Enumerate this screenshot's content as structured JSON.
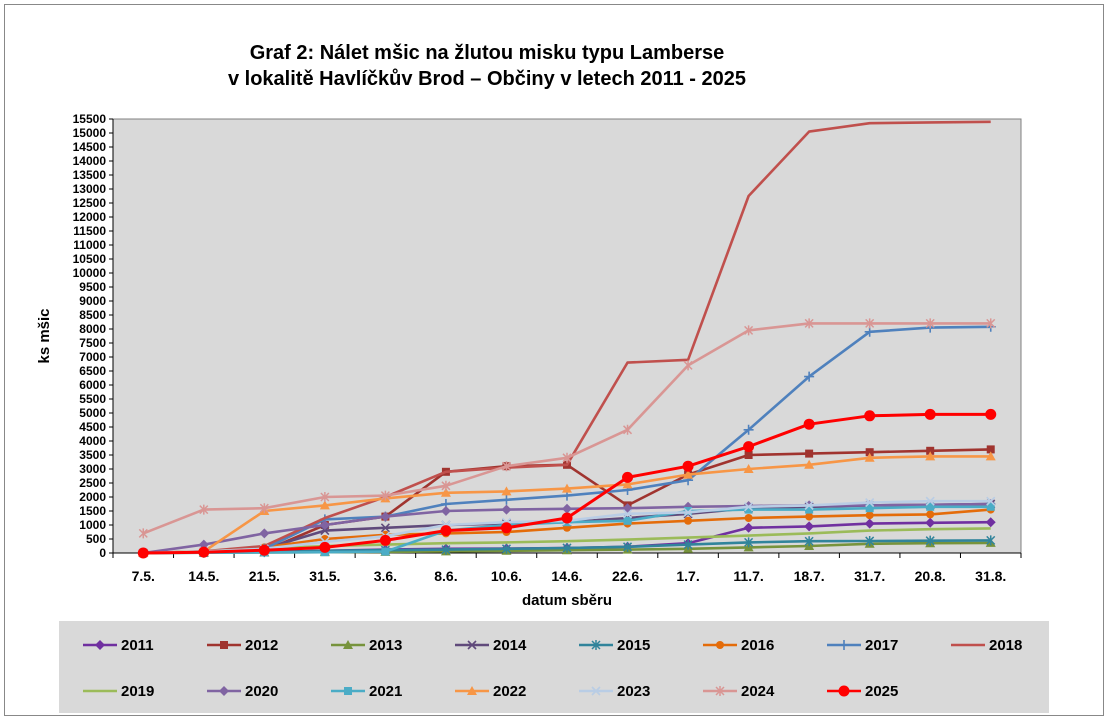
{
  "chart_data": {
    "type": "line",
    "title": "Graf 2: Nálet mšic na žlutou misku typu Lamberse",
    "subtitle": "v lokalitě Havlíčkův Brod – Občiny v letech 2011 - 2025",
    "xlabel": "datum sběru",
    "ylabel": "ks mšic",
    "ylim": [
      0,
      15500
    ],
    "ytick_step": 500,
    "grid": false,
    "legend_position": "bottom",
    "categories": [
      "7.5.",
      "14.5.",
      "21.5.",
      "31.5.",
      "3.6.",
      "8.6.",
      "10.6.",
      "14.6.",
      "22.6.",
      "1.7.",
      "11.7.",
      "18.7.",
      "31.7.",
      "20.8.",
      "31.8."
    ],
    "series": [
      {
        "name": "2011",
        "color": "#7030A0",
        "marker": "diamond",
        "values": [
          0,
          20,
          40,
          80,
          120,
          150,
          160,
          180,
          220,
          350,
          900,
          950,
          1050,
          1080,
          1100
        ]
      },
      {
        "name": "2012",
        "color": "#A0342F",
        "marker": "square",
        "values": [
          0,
          30,
          80,
          1000,
          1300,
          2900,
          3100,
          3150,
          1700,
          2800,
          3500,
          3550,
          3600,
          3650,
          3700
        ]
      },
      {
        "name": "2013",
        "color": "#77933C",
        "marker": "triangle",
        "values": [
          0,
          10,
          20,
          30,
          40,
          60,
          80,
          100,
          120,
          150,
          200,
          250,
          330,
          350,
          360
        ]
      },
      {
        "name": "2014",
        "color": "#604A7B",
        "marker": "x",
        "values": [
          0,
          50,
          150,
          800,
          900,
          1000,
          1050,
          1100,
          1250,
          1400,
          1600,
          1650,
          1700,
          1720,
          1750
        ]
      },
      {
        "name": "2015",
        "color": "#31849B",
        "marker": "star",
        "values": [
          0,
          10,
          30,
          80,
          100,
          120,
          150,
          180,
          220,
          300,
          380,
          420,
          430,
          440,
          450
        ]
      },
      {
        "name": "2016",
        "color": "#E46C0A",
        "marker": "circle",
        "values": [
          0,
          40,
          200,
          500,
          650,
          700,
          750,
          900,
          1050,
          1150,
          1250,
          1300,
          1350,
          1380,
          1550
        ]
      },
      {
        "name": "2017",
        "color": "#4F81BD",
        "marker": "plus",
        "values": [
          0,
          50,
          150,
          1200,
          1300,
          1750,
          1900,
          2050,
          2250,
          2600,
          4400,
          6300,
          7900,
          8050,
          8080
        ]
      },
      {
        "name": "2018",
        "color": "#C0504D",
        "marker": "none",
        "values": [
          0,
          60,
          250,
          1250,
          2000,
          2900,
          3050,
          3150,
          6800,
          6900,
          12750,
          15050,
          15350,
          15380,
          15400
        ]
      },
      {
        "name": "2019",
        "color": "#9BBB59",
        "marker": "none",
        "values": [
          0,
          50,
          150,
          250,
          300,
          350,
          380,
          420,
          480,
          550,
          620,
          700,
          800,
          850,
          880
        ]
      },
      {
        "name": "2020",
        "color": "#8064A2",
        "marker": "diamond",
        "values": [
          0,
          300,
          700,
          1000,
          1300,
          1500,
          1550,
          1580,
          1600,
          1650,
          1680,
          1700,
          1700,
          1720,
          1750
        ]
      },
      {
        "name": "2021",
        "color": "#4BACC6",
        "marker": "square",
        "values": [
          0,
          10,
          20,
          30,
          50,
          800,
          1000,
          1100,
          1150,
          1500,
          1550,
          1550,
          1600,
          1650,
          1650
        ]
      },
      {
        "name": "2022",
        "color": "#F79646",
        "marker": "triangle",
        "values": [
          0,
          50,
          1500,
          1700,
          1950,
          2150,
          2200,
          2300,
          2450,
          2800,
          3000,
          3150,
          3400,
          3450,
          3450
        ]
      },
      {
        "name": "2023",
        "color": "#B9CDE5",
        "marker": "x",
        "values": [
          0,
          50,
          150,
          400,
          600,
          1000,
          1100,
          1150,
          1400,
          1450,
          1650,
          1700,
          1800,
          1850,
          1850
        ]
      },
      {
        "name": "2024",
        "color": "#D99694",
        "marker": "star",
        "values": [
          700,
          1550,
          1600,
          2000,
          2050,
          2400,
          3100,
          3400,
          4400,
          6700,
          7950,
          8200,
          8200,
          8200,
          8200
        ]
      },
      {
        "name": "2025",
        "color": "#FF0000",
        "marker": "circle-big",
        "values": [
          0,
          30,
          100,
          200,
          450,
          800,
          900,
          1250,
          2700,
          3100,
          3800,
          4600,
          4900,
          4950,
          4950
        ]
      }
    ]
  }
}
